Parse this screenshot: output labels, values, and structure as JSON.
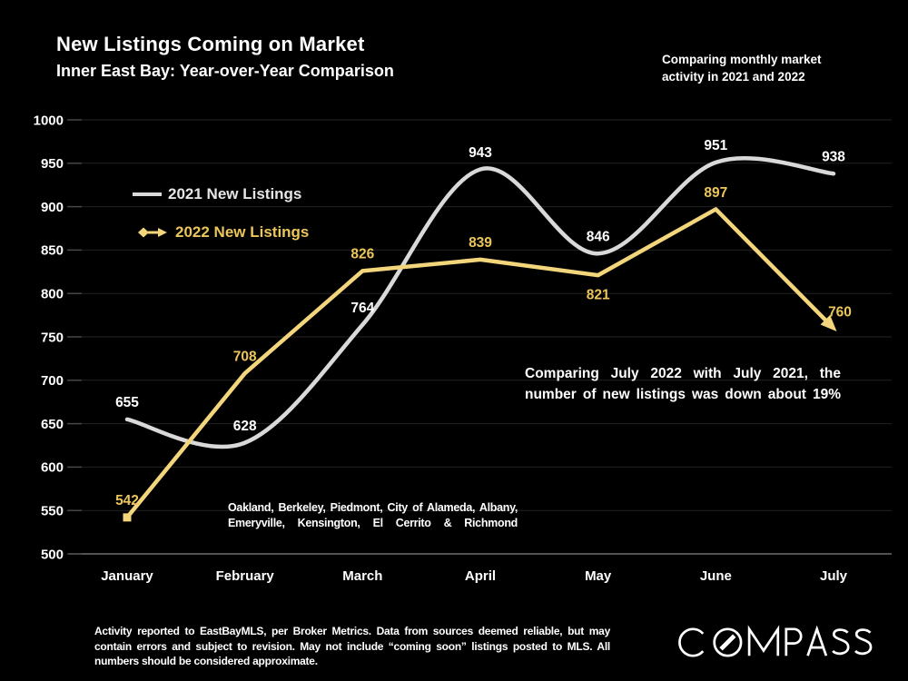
{
  "slide": {
    "title": "New Listings Coming on Market",
    "subtitle": "Inner East Bay: Year-over-Year Comparison",
    "top_note_lines": [
      "Comparing monthly market",
      "activity in 2021 and 2022"
    ],
    "annotation": "Comparing July 2022 with July 2021, the number of new listings was down about 19%",
    "region_note": "Oakland, Berkeley, Piedmont, City of Alameda, Albany, Emeryville, Kensington, El Cerrito & Richmond",
    "footer": "Activity reported to EastBayMLS, per Broker Metrics. Data from sources deemed reliable, but may contain errors and subject to revision. May not include “coming soon” listings posted to MLS. All numbers should be considered approximate.",
    "logo_text": "COMPASS"
  },
  "chart_data": {
    "type": "line",
    "title": "New Listings Coming on Market",
    "subtitle": "Inner East Bay: Year-over-Year Comparison",
    "categories": [
      "January",
      "February",
      "March",
      "April",
      "May",
      "June",
      "July"
    ],
    "series": [
      {
        "name": "2021 New Listings",
        "color": "#D9D9D9",
        "label_color": "#FFFFFF",
        "smooth": true,
        "values": [
          655,
          628,
          764,
          943,
          846,
          951,
          938
        ]
      },
      {
        "name": "2022 New Listings",
        "color": "#F3D67B",
        "label_color": "#ECC65A",
        "smooth": false,
        "start_marker": "square",
        "end_marker": "arrow",
        "values": [
          542,
          708,
          826,
          839,
          821,
          897,
          760
        ]
      }
    ],
    "ylim": [
      500,
      1000
    ],
    "ytick_step": 50,
    "grid": true,
    "legend_position": "upper-left-inside",
    "xlabel": "",
    "ylabel": ""
  },
  "colors": {
    "background": "#000000",
    "grid": "#232323",
    "axis": "#6E6E6E",
    "tick": "#4A4A4A",
    "text": "#FFFFFF"
  }
}
